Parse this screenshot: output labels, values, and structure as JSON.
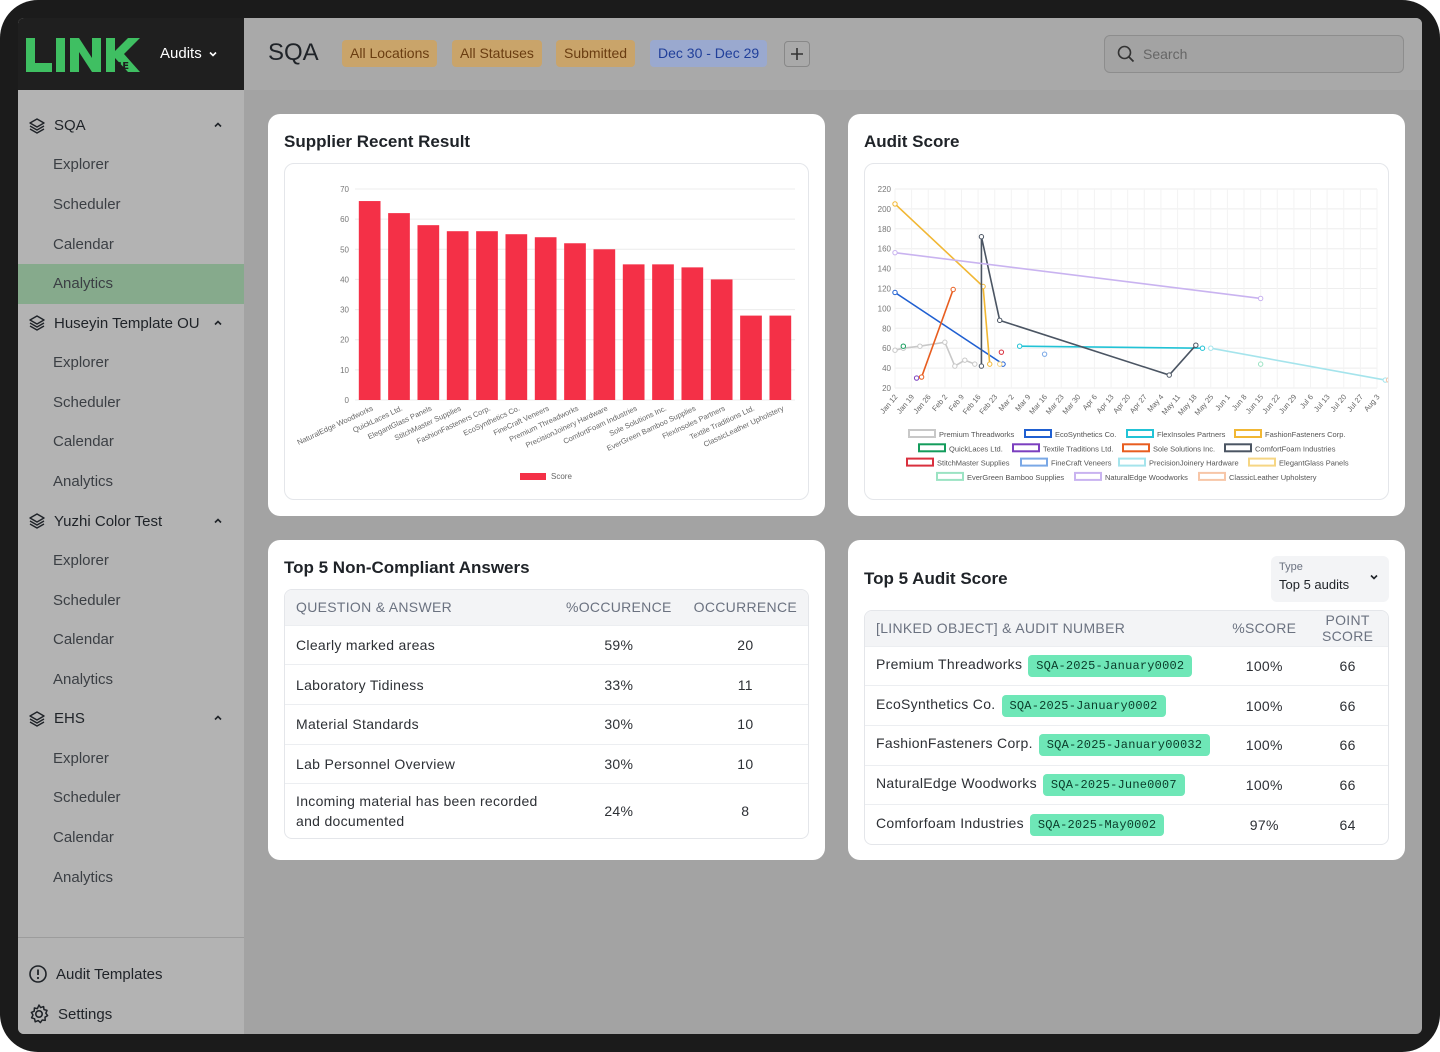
{
  "app": {
    "module": "Audits",
    "logo_sub": "SE"
  },
  "sidebar": {
    "groups": [
      {
        "label": "SQA",
        "items": [
          "Explorer",
          "Scheduler",
          "Calendar",
          "Analytics"
        ]
      },
      {
        "label": "Huseyin Template OU",
        "items": [
          "Explorer",
          "Scheduler",
          "Calendar",
          "Analytics"
        ]
      },
      {
        "label": "Yuzhi Color Test",
        "items": [
          "Explorer",
          "Scheduler",
          "Calendar",
          "Analytics"
        ]
      },
      {
        "label": "EHS",
        "items": [
          "Explorer",
          "Scheduler",
          "Calendar",
          "Analytics"
        ]
      }
    ],
    "active": "SQA / Analytics",
    "bottom": {
      "templates": "Audit Templates",
      "settings": "Settings"
    }
  },
  "header": {
    "title": "SQA",
    "filters": {
      "location": "All Locations",
      "status": "All Statuses",
      "submitted": "Submitted",
      "date": "Dec 30 - Dec 29"
    },
    "search_placeholder": "Search"
  },
  "cards": {
    "supplier_title": "Supplier Recent Result",
    "audit_score_title": "Audit Score",
    "noncompliant_title": "Top 5 Non-Compliant Answers",
    "top5_title": "Top 5 Audit Score"
  },
  "chart_data": [
    {
      "type": "bar",
      "categories": [
        "NaturalEdge Woodworks",
        "QuickLaces Ltd.",
        "ElegantGlass Panels",
        "StitchMaster Supplies",
        "FashionFasteners Corp.",
        "EcoSynthetics Co.",
        "FineCraft Veneers",
        "Premium Threadworks",
        "PrecisionJoinery Hardware",
        "ComfortFoam Industries",
        "Sole Solutions Inc.",
        "EverGreen Bamboo Supplies",
        "FlexInsoles Partners",
        "Textile Traditions Ltd.",
        "ClassicLeather Upholstery"
      ],
      "series": [
        {
          "name": "Score",
          "values": [
            66,
            62,
            58,
            56,
            56,
            55,
            54,
            52,
            50,
            45,
            45,
            44,
            40,
            28,
            28
          ],
          "color": "#f43047"
        }
      ],
      "yticks": [
        "0",
        "10",
        "20",
        "30",
        "40",
        "50",
        "60",
        "70"
      ],
      "ylim": [
        0,
        70
      ],
      "legend": "bottom",
      "grid": true
    },
    {
      "type": "line",
      "x": [
        "Jan 12",
        "Jan 19",
        "Jan 26",
        "Feb 2",
        "Feb 9",
        "Feb 16",
        "Feb 23",
        "Mar 2",
        "Mar 9",
        "Mar 16",
        "Mar 23",
        "Mar 30",
        "Apr 6",
        "Apr 13",
        "Apr 20",
        "Apr 27",
        "May 4",
        "May 11",
        "May 18",
        "May 25",
        "Jun 1",
        "Jun 8",
        "Jun 15",
        "Jun 22",
        "Jun 29",
        "Jul 6",
        "Jul 13",
        "Jul 20",
        "Jul 27",
        "Aug 3"
      ],
      "yticks": [
        "20",
        "40",
        "60",
        "80",
        "100",
        "120",
        "140",
        "160",
        "180",
        "200",
        "220"
      ],
      "ylim": [
        20,
        220
      ],
      "legend": "bottom",
      "grid": true,
      "series": [
        {
          "name": "Premium Threadworks",
          "color": "#c8c8c8",
          "points": [
            [
              0,
              58
            ],
            [
              0.5,
              60
            ],
            [
              1.5,
              62
            ],
            [
              3,
              66
            ],
            [
              3.6,
              42
            ],
            [
              4.2,
              48
            ],
            [
              4.8,
              44
            ]
          ]
        },
        {
          "name": "EcoSynthetics Co.",
          "color": "#1f5fd1",
          "points": [
            [
              0,
              116
            ],
            [
              6.5,
              44
            ]
          ]
        },
        {
          "name": "FlexInsoles Partners",
          "color": "#22c3d6",
          "points": [
            [
              7.5,
              62
            ],
            [
              18.5,
              60
            ]
          ]
        },
        {
          "name": "FashionFasteners Corp.",
          "color": "#f1b734",
          "points": [
            [
              0,
              205
            ],
            [
              5.3,
              122
            ],
            [
              5.7,
              44
            ]
          ]
        },
        {
          "name": "QuickLaces Ltd.",
          "color": "#149c5c",
          "points": [
            [
              0.5,
              62
            ]
          ]
        },
        {
          "name": "Textile Traditions Ltd.",
          "color": "#7b3fbf",
          "points": [
            [
              1.3,
              30
            ]
          ]
        },
        {
          "name": "Sole Solutions Inc.",
          "color": "#e85d1f",
          "points": [
            [
              1.6,
              31
            ],
            [
              3.5,
              119
            ]
          ]
        },
        {
          "name": "ComfortFoam Industries",
          "color": "#4b5563",
          "points": [
            [
              5.2,
              42
            ],
            [
              5.2,
              172
            ],
            [
              6.3,
              88
            ],
            [
              16.5,
              33
            ],
            [
              18.1,
              63
            ]
          ]
        },
        {
          "name": "StitchMaster Supplies",
          "color": "#d9303e",
          "points": [
            [
              6.4,
              56
            ]
          ]
        },
        {
          "name": "FineCraft Veneers",
          "color": "#7aa8e6",
          "points": [
            [
              9,
              54
            ]
          ]
        },
        {
          "name": "PrecisionJoinery Hardware",
          "color": "#a5e4ec",
          "points": [
            [
              19,
              60
            ],
            [
              29.5,
              28
            ]
          ]
        },
        {
          "name": "ElegantGlass Panels",
          "color": "#f6d684",
          "points": [
            [
              6.3,
              44
            ]
          ]
        },
        {
          "name": "EverGreen Bamboo Supplies",
          "color": "#9be3c3",
          "points": [
            [
              22,
              44
            ]
          ]
        },
        {
          "name": "NaturalEdge Woodworks",
          "color": "#c9b3f0",
          "points": [
            [
              22,
              110
            ],
            [
              0,
              156
            ]
          ]
        },
        {
          "name": "ClassicLeather Upholstery",
          "color": "#f7c6a8",
          "points": [
            [
              29.7,
              28
            ]
          ]
        }
      ]
    }
  ],
  "noncompliant": {
    "headers": [
      "QUESTION & ANSWER",
      "%OCCURENCE",
      "OCCURRENCE"
    ],
    "rows": [
      {
        "q": "Clearly marked areas",
        "pct": "59%",
        "n": "20"
      },
      {
        "q": "Laboratory Tidiness",
        "pct": "33%",
        "n": "11"
      },
      {
        "q": "Material Standards",
        "pct": "30%",
        "n": "10"
      },
      {
        "q": "Lab Personnel Overview",
        "pct": "30%",
        "n": "10"
      },
      {
        "q": "Incoming material has been recorded and documented",
        "pct": "24%",
        "n": "8"
      }
    ]
  },
  "top5": {
    "type_label": "Type",
    "type_value": "Top 5 audits",
    "headers": [
      "[LINKED OBJECT] & AUDIT NUMBER",
      "%SCORE",
      "POINT SCORE"
    ],
    "rows": [
      {
        "name": "Premium Threadworks",
        "tag": "SQA-2025-January0002",
        "pct": "100%",
        "pts": "66"
      },
      {
        "name": "EcoSynthetics Co.",
        "tag": "SQA-2025-January0002",
        "pct": "100%",
        "pts": "66"
      },
      {
        "name": "FashionFasteners Corp.",
        "tag": "SQA-2025-January00032",
        "pct": "100%",
        "pts": "66"
      },
      {
        "name": "NaturalEdge Woodworks",
        "tag": "SQA-2025-June0007",
        "pct": "100%",
        "pts": "66"
      },
      {
        "name": "Comforfoam Industries",
        "tag": "SQA-2025-May0002",
        "pct": "97%",
        "pts": "64"
      }
    ]
  }
}
